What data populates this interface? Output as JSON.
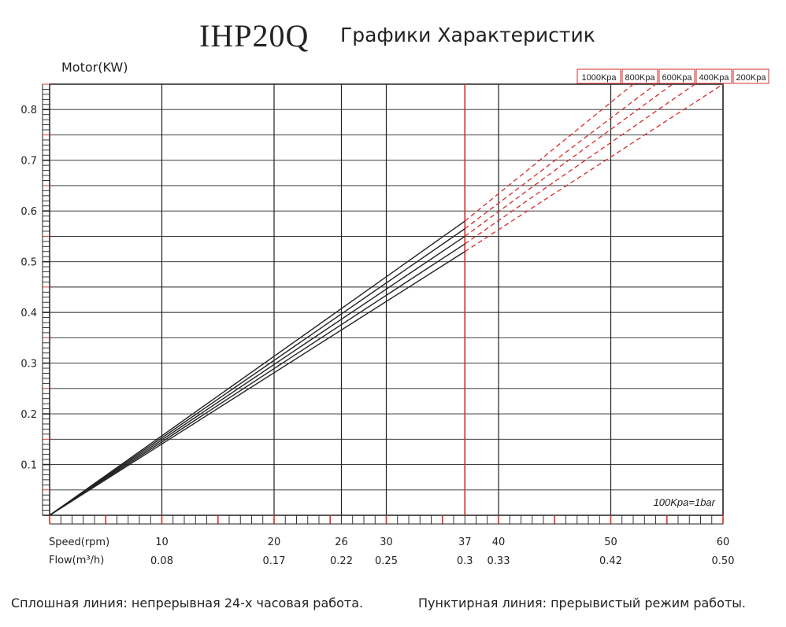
{
  "header": {
    "model": "IHP20Q",
    "title": "Графики Характеристик"
  },
  "footer": {
    "solid_note": "Сплошная линия: непрерывная 24-х часовая работа.",
    "dashed_note": "Пунктирная линия: прерывистый режим работы."
  },
  "colors": {
    "grid": "#222222",
    "highlight": "#d62b2b",
    "dashed": "#d62b2b",
    "solid": "#222222"
  },
  "chart_data": {
    "type": "line",
    "title": "Графики Характеристик",
    "ylabel": "Motor(KW)",
    "xlabel": "Speed(rpm)",
    "x2label": "Flow(m³/h)",
    "xlim": [
      0,
      60
    ],
    "ylim": [
      0,
      0.85
    ],
    "yticks": [
      0.1,
      0.2,
      0.3,
      0.4,
      0.5,
      0.6,
      0.7,
      0.8
    ],
    "xticks": [
      {
        "speed": 10,
        "flow": "0.08"
      },
      {
        "speed": 20,
        "flow": "0.17"
      },
      {
        "speed": 26,
        "flow": "0.22"
      },
      {
        "speed": 30,
        "flow": "0.25"
      },
      {
        "speed": 37,
        "flow": "0.3"
      },
      {
        "speed": 40,
        "flow": "0.33"
      },
      {
        "speed": 50,
        "flow": "0.42"
      },
      {
        "speed": 60,
        "flow": "0.50"
      }
    ],
    "highlight_x": 37,
    "pressure_note": "100Kpa=1bar",
    "legend_placement": "top-right",
    "series": [
      {
        "name": "1000Kpa",
        "solid_x": [
          0,
          37
        ],
        "solid_y": [
          0.0,
          0.58
        ],
        "dashed_x": [
          37,
          52
        ],
        "dashed_y": [
          0.58,
          0.85
        ]
      },
      {
        "name": "800Kpa",
        "solid_x": [
          0,
          37
        ],
        "solid_y": [
          0.0,
          0.565
        ],
        "dashed_x": [
          37,
          54
        ],
        "dashed_y": [
          0.565,
          0.85
        ]
      },
      {
        "name": "600Kpa",
        "solid_x": [
          0,
          37
        ],
        "solid_y": [
          0.0,
          0.55
        ],
        "dashed_x": [
          37,
          55.5
        ],
        "dashed_y": [
          0.55,
          0.85
        ]
      },
      {
        "name": "400Kpa",
        "solid_x": [
          0,
          37
        ],
        "solid_y": [
          0.0,
          0.535
        ],
        "dashed_x": [
          37,
          57.5
        ],
        "dashed_y": [
          0.535,
          0.85
        ]
      },
      {
        "name": "200Kpa",
        "solid_x": [
          0,
          37
        ],
        "solid_y": [
          0.0,
          0.52
        ],
        "dashed_x": [
          37,
          60
        ],
        "dashed_y": [
          0.52,
          0.85
        ]
      }
    ]
  }
}
